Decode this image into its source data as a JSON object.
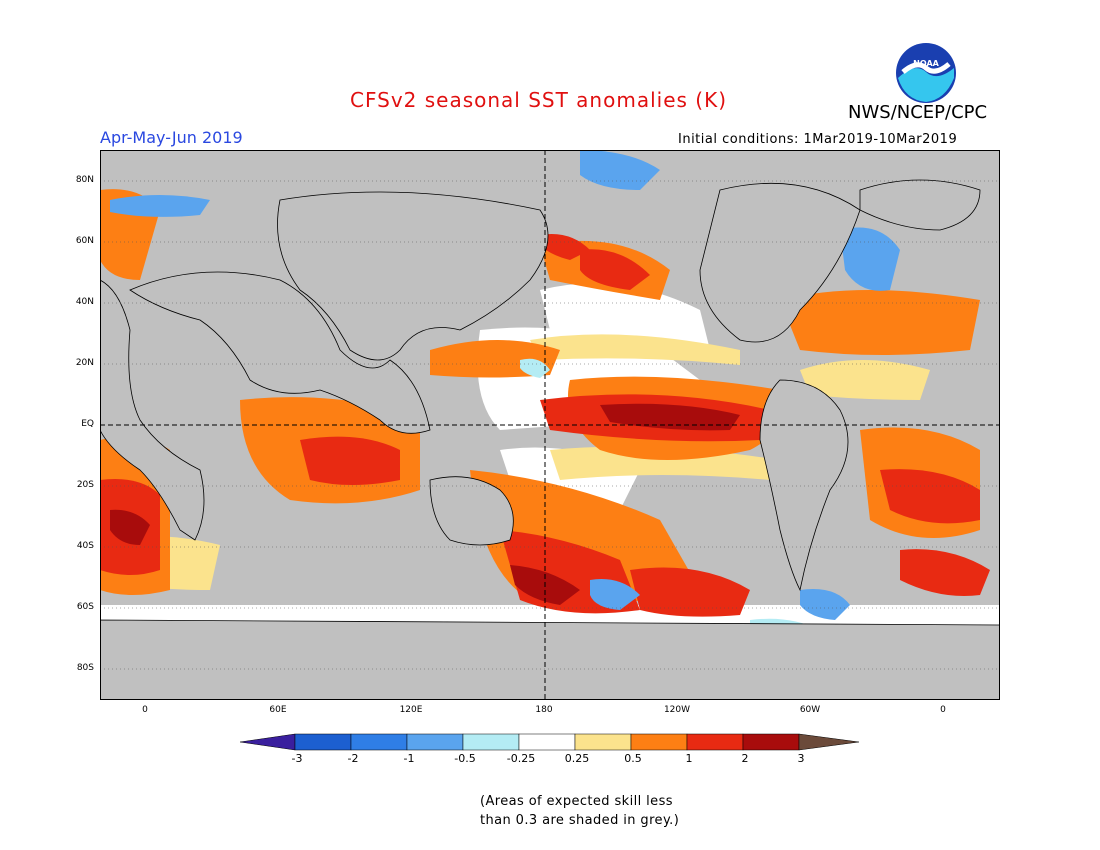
{
  "header": {
    "title": "CFSv2 seasonal SST anomalies (K)",
    "org": "NWS/NCEP/CPC",
    "period": "Apr-May-Jun 2019",
    "initial_conditions": "Initial conditions: 1Mar2019-10Mar2019",
    "logo_text": "NOAA"
  },
  "map": {
    "lat_labels": [
      "80N",
      "60N",
      "40N",
      "20N",
      "EQ",
      "20S",
      "40S",
      "60S",
      "80S"
    ],
    "lon_labels": [
      "0",
      "60E",
      "120E",
      "180",
      "120W",
      "60W",
      "0"
    ],
    "land_color": "#c0c0c0",
    "region": "global"
  },
  "legend": {
    "labels": [
      "-3",
      "-2",
      "-1",
      "-0.5",
      "-0.25",
      "0.25",
      "0.5",
      "1",
      "2",
      "3"
    ],
    "colors": [
      "#3a1f9e",
      "#1c5fd0",
      "#2f7ee6",
      "#5aa4ee",
      "#b4ecf4",
      "#ffffff",
      "#fbe38d",
      "#fd7f14",
      "#e82a12",
      "#a80c0c",
      "#6b4a3a"
    ]
  },
  "note": {
    "line1": "(Areas of expected skill less",
    "line2": "than 0.3 are shaded in grey.)"
  }
}
